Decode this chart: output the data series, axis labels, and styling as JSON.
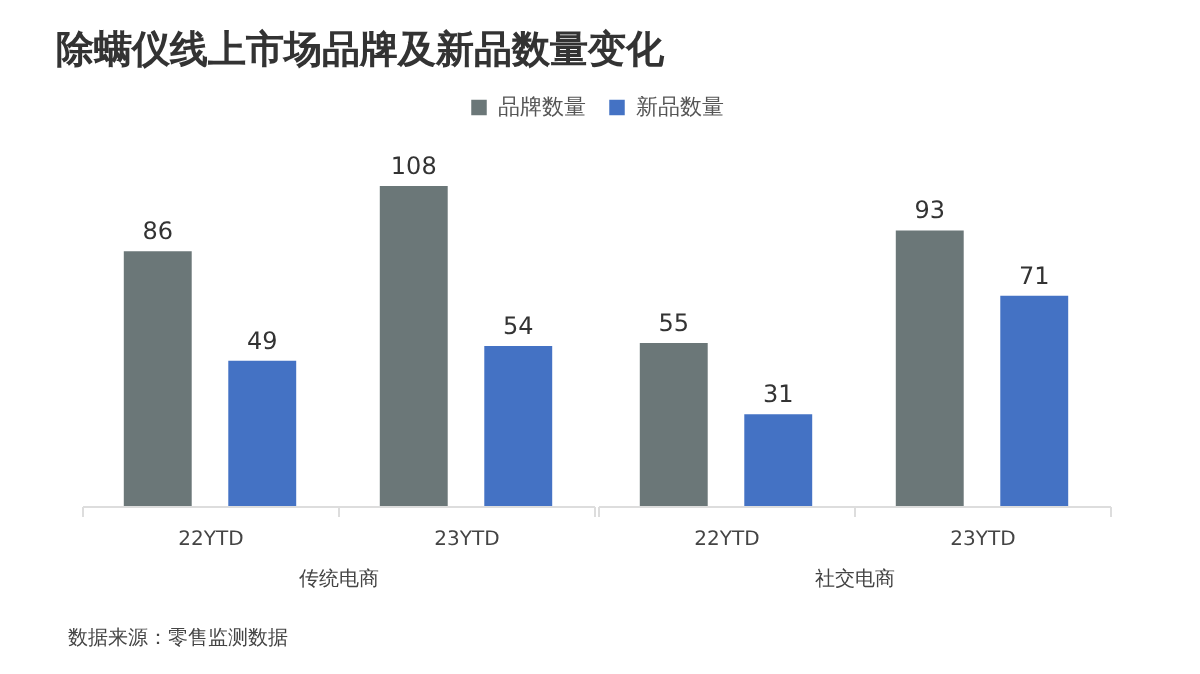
{
  "chart_data": [
    {
      "type": "bar",
      "title": "除螨仪线上市场品牌及新品数量变化",
      "xlabel": "传统电商",
      "categories": [
        "22YTD",
        "23YTD"
      ],
      "series": [
        {
          "name": "品牌数量",
          "color": "#6b7778",
          "values": [
            86,
            108
          ]
        },
        {
          "name": "新品数量",
          "color": "#4472c4",
          "values": [
            49,
            54
          ]
        }
      ],
      "data_labels": true,
      "legend": "top",
      "grid": false,
      "annotations": [
        "数据来源：零售监测数据"
      ]
    },
    {
      "type": "bar",
      "xlabel": "社交电商",
      "categories": [
        "22YTD",
        "23YTD"
      ],
      "series": [
        {
          "name": "品牌数量",
          "color": "#6b7778",
          "values": [
            55,
            93
          ]
        },
        {
          "name": "新品数量",
          "color": "#4472c4",
          "values": [
            31,
            71
          ]
        }
      ],
      "data_labels": true,
      "legend": "top",
      "grid": false
    }
  ]
}
